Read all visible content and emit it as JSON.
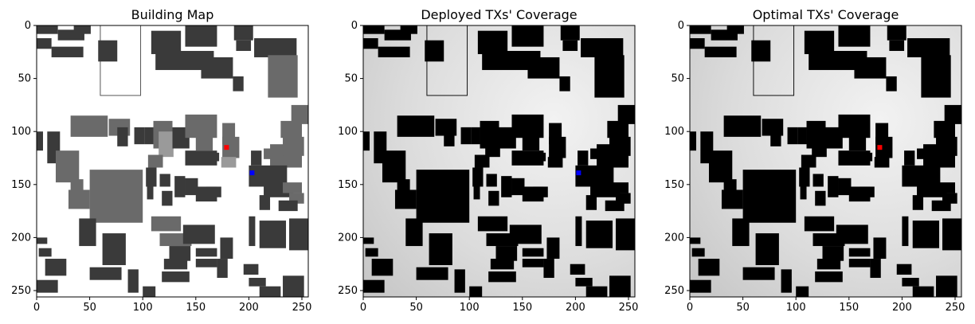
{
  "figure": {
    "panels": [
      {
        "title": "Building Map",
        "mode": "map"
      },
      {
        "title": "Deployed TXs' Coverage",
        "mode": "coverage"
      },
      {
        "title": "Optimal TXs' Coverage",
        "mode": "coverage"
      }
    ]
  },
  "chart_data": [
    {
      "type": "heatmap",
      "title": "Building Map",
      "xlabel": "",
      "ylabel": "",
      "xlim": [
        0,
        256
      ],
      "ylim": [
        256,
        0
      ],
      "x_ticks": [
        0,
        50,
        100,
        150,
        200,
        250
      ],
      "y_ticks": [
        0,
        50,
        100,
        150,
        200,
        250
      ],
      "markers": [
        {
          "label": "",
          "color": "#ff0000",
          "x": 179,
          "y": 115
        },
        {
          "label": "",
          "color": "#0000ff",
          "x": 203,
          "y": 139
        }
      ]
    },
    {
      "type": "heatmap",
      "title": "Deployed TXs' Coverage",
      "xlabel": "",
      "ylabel": "",
      "xlim": [
        0,
        256
      ],
      "ylim": [
        256,
        0
      ],
      "x_ticks": [
        0,
        50,
        100,
        150,
        200,
        250
      ],
      "y_ticks": [
        0,
        50,
        100,
        150,
        200,
        250
      ],
      "markers": [
        {
          "label": "",
          "color": "#0000ff",
          "x": 203,
          "y": 139
        }
      ]
    },
    {
      "type": "heatmap",
      "title": "Optimal TXs' Coverage",
      "xlabel": "",
      "ylabel": "",
      "xlim": [
        0,
        256
      ],
      "ylim": [
        256,
        0
      ],
      "x_ticks": [
        0,
        50,
        100,
        150,
        200,
        250
      ],
      "y_ticks": [
        0,
        50,
        100,
        150,
        200,
        250
      ],
      "markers": [
        {
          "label": "",
          "color": "#ff0000",
          "x": 179,
          "y": 115
        }
      ]
    }
  ],
  "colors": {
    "background_map": "#ffffff",
    "coverage_bg": "#d8d8d8",
    "building_dark": "#3a3a3a",
    "building_mid": "#6a6a6a",
    "building_light": "#9a9a9a",
    "building_coverage": "#000000"
  }
}
